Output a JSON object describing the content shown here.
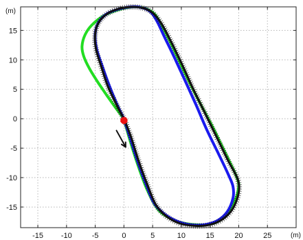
{
  "chart_data": {
    "type": "line",
    "xlabel": "(m)",
    "ylabel": "(m)",
    "xlim": [
      -18,
      30
    ],
    "ylim": [
      -18.5,
      19
    ],
    "xticks": [
      -15,
      -10,
      -5,
      0,
      5,
      10,
      15,
      20,
      25
    ],
    "yticks": [
      15,
      10,
      5,
      0,
      -5,
      -10,
      -15
    ],
    "grid": true,
    "series": [
      {
        "color": "#22dd22",
        "values": [
          [
            0,
            0
          ],
          [
            -1.4,
            1.8
          ],
          [
            -3,
            4
          ],
          [
            -4.6,
            6.3
          ],
          [
            -6,
            8.5
          ],
          [
            -7,
            10.6
          ],
          [
            -7.3,
            12.3
          ],
          [
            -6.8,
            14.2
          ],
          [
            -5.6,
            15.9
          ],
          [
            -3.5,
            17.5
          ],
          [
            -1,
            18.5
          ],
          [
            1.5,
            19
          ],
          [
            3.5,
            18.8
          ],
          [
            5.3,
            17.8
          ],
          [
            6.8,
            15.5
          ],
          [
            8.5,
            12.2
          ],
          [
            11,
            7
          ],
          [
            13.5,
            2.2
          ],
          [
            15.5,
            -1.5
          ],
          [
            17,
            -4.5
          ],
          [
            18.5,
            -7.5
          ],
          [
            19.6,
            -9.8
          ],
          [
            20,
            -11.5
          ],
          [
            19.3,
            -14
          ],
          [
            17.6,
            -16.6
          ],
          [
            15.5,
            -17.8
          ],
          [
            12.5,
            -18
          ],
          [
            9.5,
            -17.5
          ],
          [
            7,
            -16.3
          ],
          [
            5.5,
            -14.8
          ],
          [
            3.8,
            -11.5
          ],
          [
            2.3,
            -7.5
          ],
          [
            1,
            -3.5
          ],
          [
            0,
            0
          ]
        ]
      },
      {
        "color": "#1a1aee",
        "values": [
          [
            0,
            0
          ],
          [
            -1.1,
            2.2
          ],
          [
            -2.5,
            5.5
          ],
          [
            -3.8,
            9
          ],
          [
            -4.8,
            12
          ],
          [
            -5,
            14.5
          ],
          [
            -4.4,
            16.4
          ],
          [
            -3,
            17.8
          ],
          [
            -1,
            18.6
          ],
          [
            1.2,
            19
          ],
          [
            3,
            18.9
          ],
          [
            4.6,
            18.2
          ],
          [
            5.8,
            16.5
          ],
          [
            7,
            14
          ],
          [
            8.5,
            11
          ],
          [
            10.5,
            6.8
          ],
          [
            12.5,
            2.5
          ],
          [
            14.5,
            -2
          ],
          [
            16.5,
            -6
          ],
          [
            18.2,
            -9.5
          ],
          [
            19,
            -11.5
          ],
          [
            19,
            -13.5
          ],
          [
            18,
            -15.8
          ],
          [
            16.3,
            -17.3
          ],
          [
            14,
            -18
          ],
          [
            11.5,
            -18
          ],
          [
            9,
            -17.3
          ],
          [
            6.8,
            -16
          ],
          [
            5.2,
            -14.2
          ],
          [
            3.8,
            -11
          ],
          [
            2.3,
            -7
          ],
          [
            1,
            -3
          ],
          [
            0,
            0
          ]
        ]
      },
      {
        "color": "#111111",
        "values": [
          [
            0,
            0
          ],
          [
            -1.2,
            2.2
          ],
          [
            -2.8,
            5.5
          ],
          [
            -4,
            9
          ],
          [
            -4.9,
            12
          ],
          [
            -5,
            14.5
          ],
          [
            -4.3,
            16.5
          ],
          [
            -2.8,
            17.9
          ],
          [
            -0.8,
            18.7
          ],
          [
            1.4,
            19
          ],
          [
            3.3,
            18.8
          ],
          [
            5,
            18
          ],
          [
            6.5,
            16.2
          ],
          [
            8,
            13.5
          ],
          [
            10,
            9.5
          ],
          [
            12,
            5.2
          ],
          [
            14.2,
            0.8
          ],
          [
            16.2,
            -3.2
          ],
          [
            18.2,
            -7.2
          ],
          [
            19.8,
            -10.2
          ],
          [
            20,
            -12.5
          ],
          [
            19,
            -15.2
          ],
          [
            17.3,
            -17
          ],
          [
            15,
            -18
          ],
          [
            12.5,
            -18.2
          ],
          [
            9.8,
            -17.8
          ],
          [
            7.3,
            -16.5
          ],
          [
            5.5,
            -14.5
          ],
          [
            4,
            -11
          ],
          [
            2.5,
            -7
          ],
          [
            1.2,
            -3
          ],
          [
            0,
            0
          ]
        ]
      }
    ],
    "markers": [
      {
        "color": "#ee1111",
        "x": 0,
        "y": -0.3
      }
    ],
    "arrow": {
      "from": [
        -1.3,
        -2
      ],
      "to": [
        0.3,
        -4.8
      ],
      "color": "#111111"
    }
  }
}
